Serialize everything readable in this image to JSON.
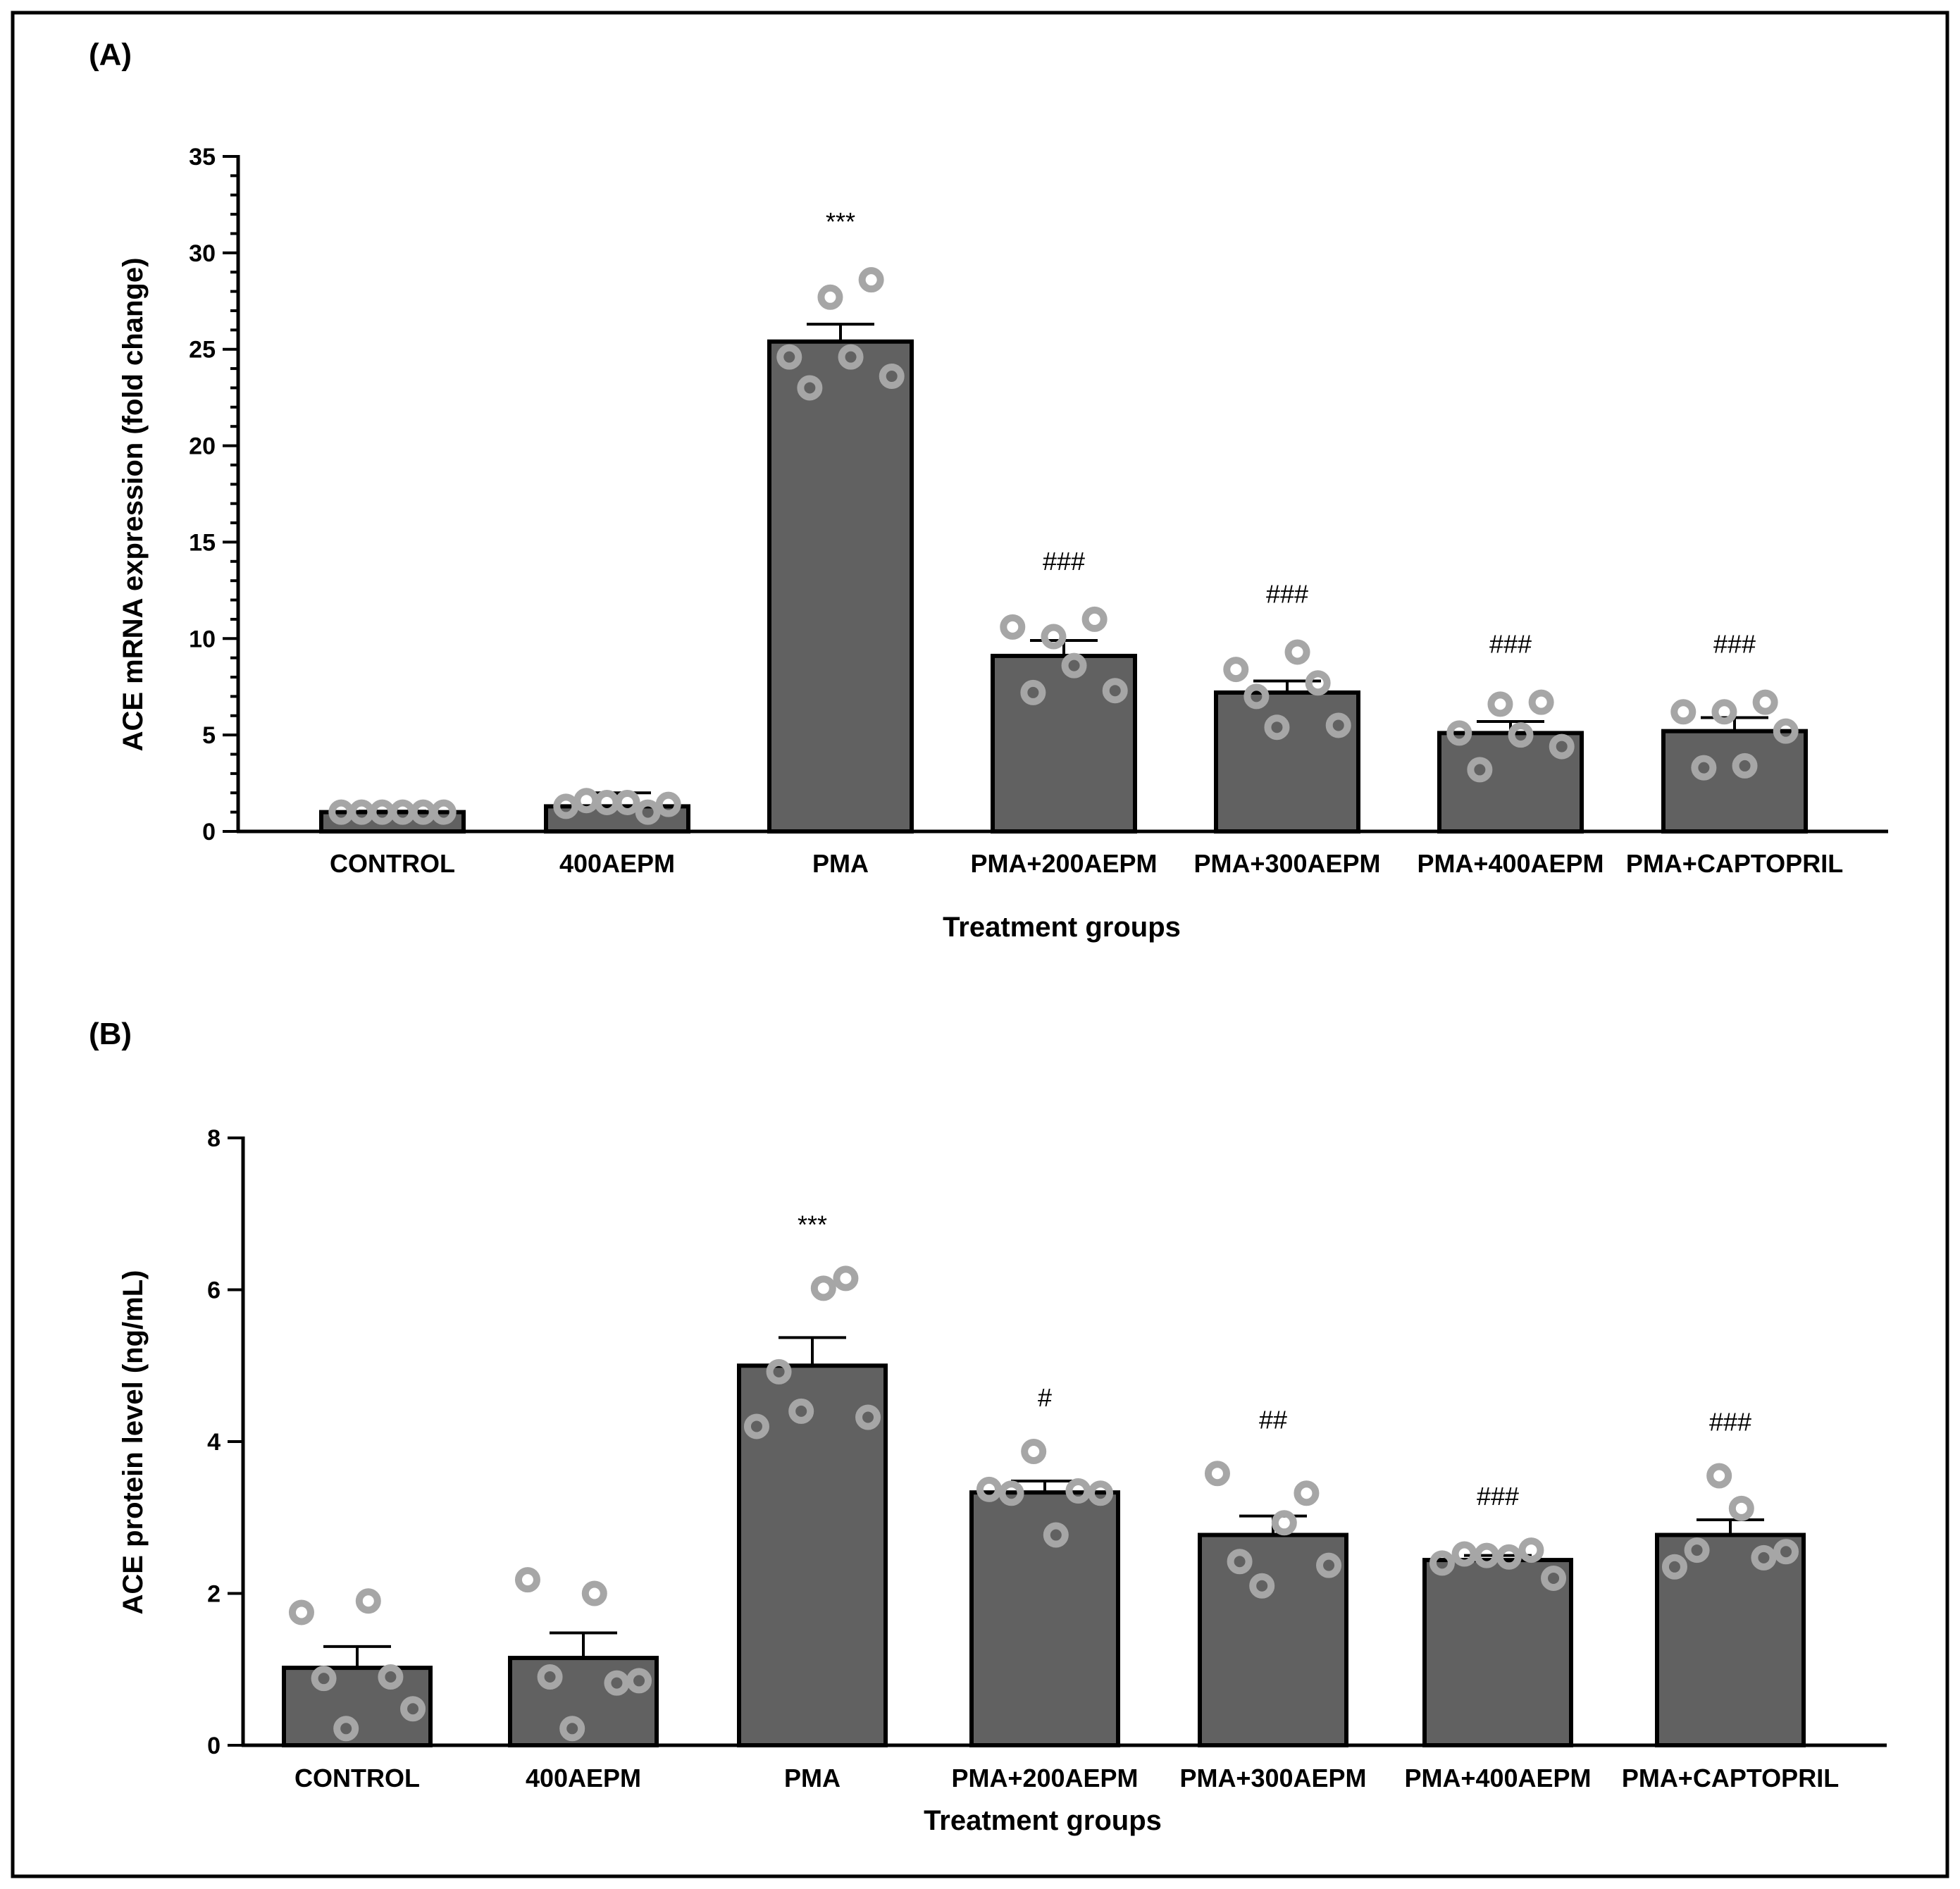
{
  "figure": {
    "border_color": "#000000"
  },
  "chart_data": [
    {
      "panel_label": "(A)",
      "type": "bar",
      "title": "",
      "xlabel": "Treatment groups",
      "ylabel": "ACE mRNA expression (fold change)",
      "ylim": [
        0,
        35
      ],
      "yticks": [
        "0",
        "5",
        "10",
        "15",
        "20",
        "25",
        "30",
        "35"
      ],
      "ytick_values": [
        0,
        5,
        10,
        15,
        20,
        25,
        30,
        35
      ],
      "minor_tick_step": 1,
      "grid": false,
      "categories": [
        "CONTROL",
        "400AEPM",
        "PMA",
        "PMA+200AEPM",
        "PMA+300AEPM",
        "PMA+400AEPM",
        "PMA+CAPTOPRIL"
      ],
      "values": [
        1.0,
        1.3,
        25.4,
        9.1,
        7.2,
        5.1,
        5.2
      ],
      "errors": [
        0.05,
        0.7,
        0.9,
        0.8,
        0.6,
        0.6,
        0.7
      ],
      "significance": [
        "",
        "",
        "***",
        "###",
        "###",
        "###",
        "###"
      ],
      "points": [
        [
          1.0,
          1.0,
          1.0,
          1.0,
          1.0,
          1.0
        ],
        [
          1.3,
          1.6,
          1.5,
          1.5,
          1.0,
          1.4
        ],
        [
          24.6,
          23.0,
          27.7,
          24.6,
          28.6,
          23.6
        ],
        [
          10.6,
          7.2,
          10.1,
          8.6,
          11.0,
          7.3
        ],
        [
          8.4,
          7.0,
          5.4,
          9.3,
          7.7,
          5.5
        ],
        [
          5.1,
          3.2,
          6.6,
          5.0,
          6.7,
          4.4
        ],
        [
          6.2,
          3.3,
          6.2,
          3.4,
          6.7,
          5.2
        ]
      ],
      "colors": {
        "bar": "#616161",
        "bar_edge": "#000000",
        "point": "#a6a6a6"
      }
    },
    {
      "panel_label": "(B)",
      "type": "bar",
      "title": "",
      "xlabel": "Treatment groups",
      "ylabel": "ACE protein level (ng/mL)",
      "ylim": [
        0,
        8
      ],
      "yticks": [
        "0",
        "2",
        "4",
        "6",
        "8"
      ],
      "ytick_values": [
        0,
        2,
        4,
        6,
        8
      ],
      "minor_tick_step": 0,
      "grid": false,
      "categories": [
        "CONTROL",
        "400AEPM",
        "PMA",
        "PMA+200AEPM",
        "PMA+300AEPM",
        "PMA+400AEPM",
        "PMA+CAPTOPRIL"
      ],
      "values": [
        1.02,
        1.15,
        5.0,
        3.33,
        2.77,
        2.44,
        2.77
      ],
      "errors": [
        0.28,
        0.33,
        0.37,
        0.15,
        0.25,
        0.06,
        0.2
      ],
      "significance": [
        "",
        "",
        "***",
        "#",
        "##",
        "###",
        "###"
      ],
      "points": [
        [
          1.75,
          0.88,
          0.22,
          1.9,
          0.9,
          0.48
        ],
        [
          2.18,
          0.9,
          0.22,
          2.0,
          0.82,
          0.85
        ],
        [
          4.2,
          4.92,
          4.4,
          6.02,
          6.15,
          4.32
        ],
        [
          3.37,
          3.32,
          3.87,
          2.77,
          3.35,
          3.32
        ],
        [
          3.58,
          2.42,
          2.1,
          2.93,
          3.32,
          2.37
        ],
        [
          2.4,
          2.52,
          2.5,
          2.48,
          2.57,
          2.2
        ],
        [
          2.35,
          2.57,
          3.55,
          3.12,
          2.47,
          2.55
        ]
      ],
      "colors": {
        "bar": "#616161",
        "bar_edge": "#000000",
        "point": "#a6a6a6"
      }
    }
  ]
}
